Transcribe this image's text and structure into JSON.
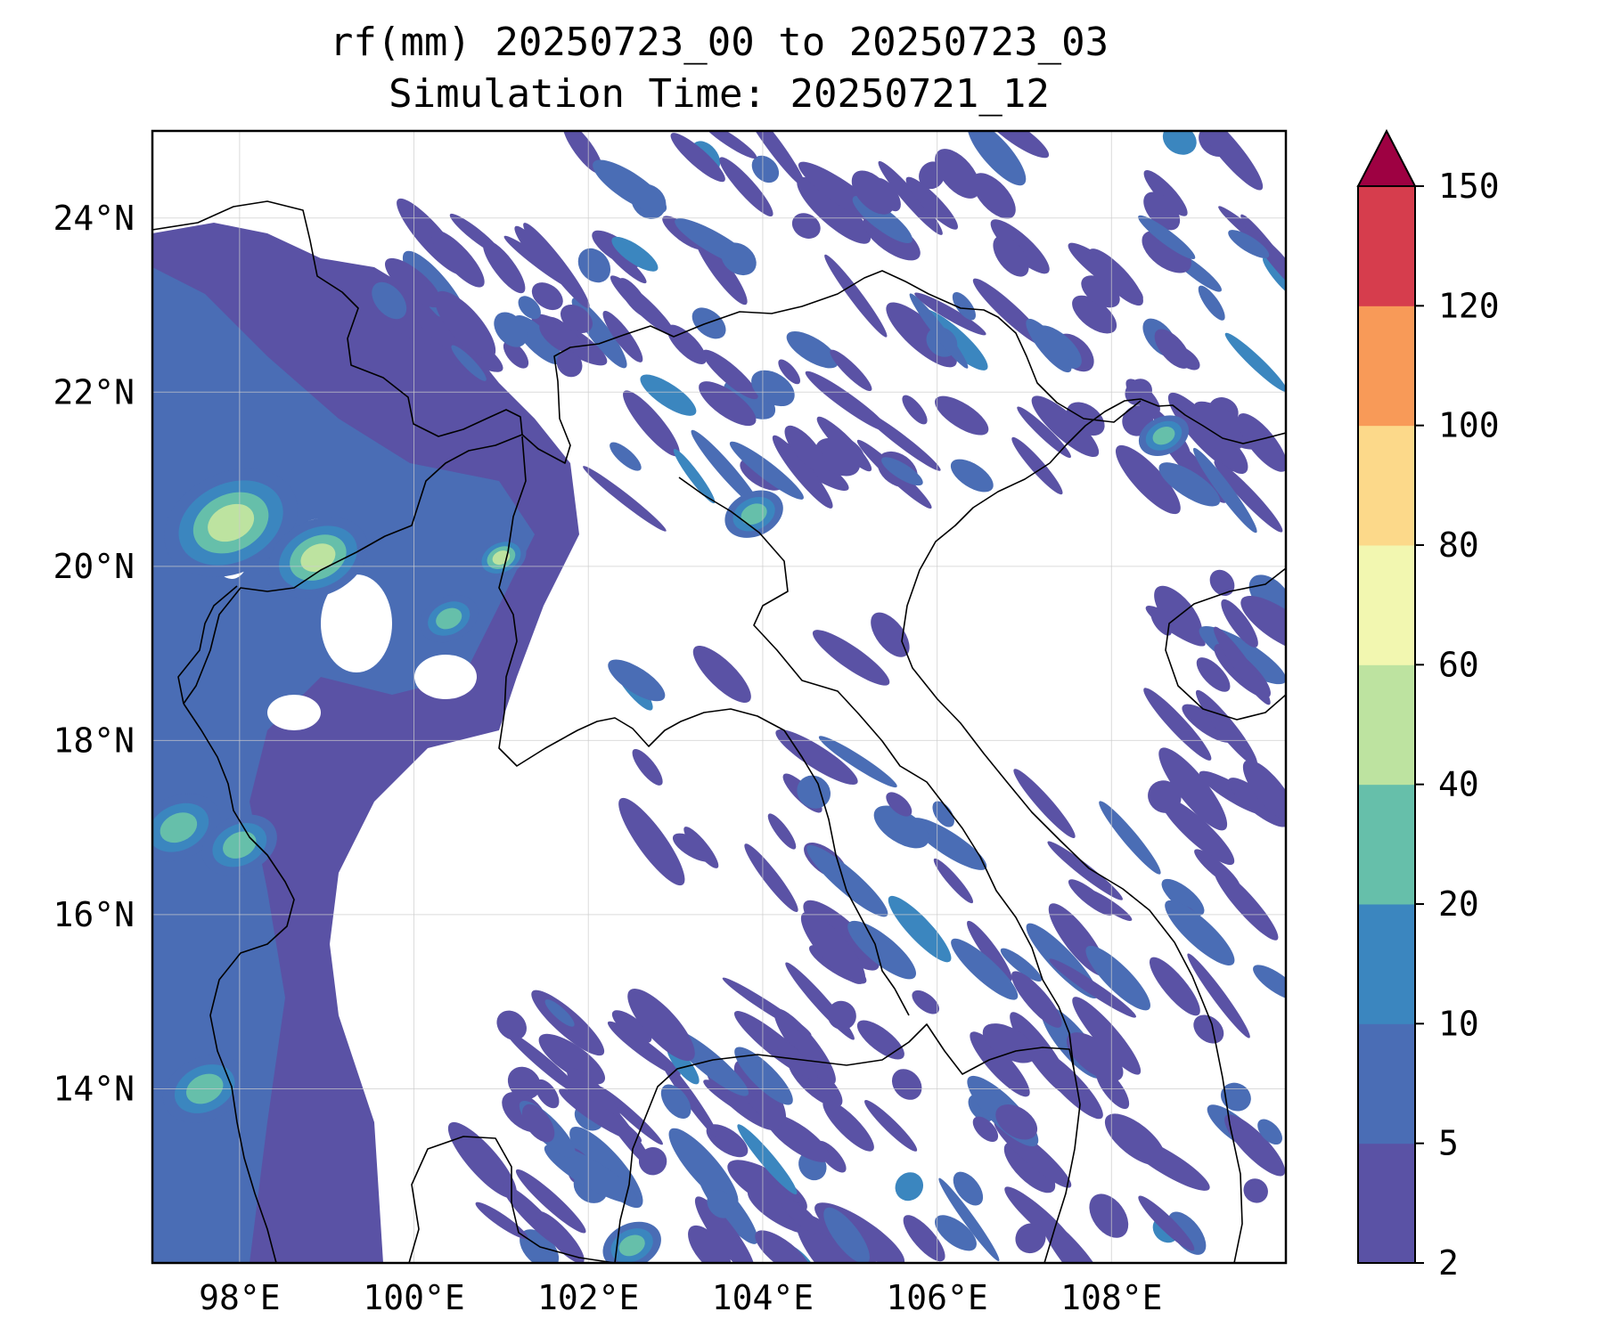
{
  "title": {
    "line1": "rf(mm) 20250723_00 to 20250723_03",
    "line2": "Simulation Time: 20250721_12"
  },
  "map": {
    "lon_range": [
      97,
      110
    ],
    "lat_range": [
      12,
      25
    ],
    "lon_ticks": [
      {
        "value": 98,
        "label": "98°E"
      },
      {
        "value": 100,
        "label": "100°E"
      },
      {
        "value": 102,
        "label": "102°E"
      },
      {
        "value": 104,
        "label": "104°E"
      },
      {
        "value": 106,
        "label": "106°E"
      },
      {
        "value": 108,
        "label": "108°E"
      }
    ],
    "lat_ticks": [
      {
        "value": 14,
        "label": "14°N"
      },
      {
        "value": 16,
        "label": "16°N"
      },
      {
        "value": 18,
        "label": "18°N"
      },
      {
        "value": 20,
        "label": "20°N"
      },
      {
        "value": 22,
        "label": "22°N"
      },
      {
        "value": 24,
        "label": "24°N"
      }
    ],
    "grid": true
  },
  "colorbar": {
    "levels": [
      2,
      5,
      10,
      20,
      40,
      60,
      80,
      100,
      120,
      150
    ],
    "level_labels": [
      "2",
      "5",
      "10",
      "20",
      "40",
      "60",
      "80",
      "100",
      "120",
      "150"
    ],
    "colors": [
      "#5a52a5",
      "#4a6db5",
      "#3b86bf",
      "#66bfaa",
      "#bde3a0",
      "#f2f7b0",
      "#fcd98a",
      "#f89a58",
      "#d63d4d"
    ],
    "extend_color": "#9e0142",
    "extend": "max"
  },
  "chart_data": {
    "type": "heatmap",
    "variable": "rf(mm)",
    "title": "rf(mm) 20250723_00 to 20250723_03",
    "subtitle": "Simulation Time: 20250721_12",
    "x_range": [
      97,
      110
    ],
    "y_range": [
      12,
      25
    ],
    "bins": [
      2,
      5,
      10,
      20,
      40,
      60,
      80,
      100,
      120,
      150
    ],
    "rain_blobs": [
      {
        "lon": 98.0,
        "lat": 20.8,
        "r": 0.35,
        "level": 5
      },
      {
        "lon": 97.9,
        "lat": 20.5,
        "r": 0.8,
        "level": 4
      },
      {
        "lon": 98.9,
        "lat": 20.0,
        "r": 0.3,
        "level": 6
      },
      {
        "lon": 98.9,
        "lat": 20.1,
        "r": 0.6,
        "level": 4
      },
      {
        "lon": 101.0,
        "lat": 20.1,
        "r": 0.3,
        "level": 4
      },
      {
        "lon": 100.4,
        "lat": 19.4,
        "r": 0.35,
        "level": 3
      },
      {
        "lon": 97.3,
        "lat": 17.0,
        "r": 0.5,
        "level": 3
      },
      {
        "lon": 98.0,
        "lat": 16.8,
        "r": 0.45,
        "level": 3
      },
      {
        "lon": 97.6,
        "lat": 14.0,
        "r": 0.5,
        "level": 3
      },
      {
        "lon": 102.5,
        "lat": 12.2,
        "r": 0.35,
        "level": 3
      },
      {
        "lon": 103.9,
        "lat": 20.6,
        "r": 0.35,
        "level": 3
      },
      {
        "lon": 108.6,
        "lat": 21.5,
        "r": 0.3,
        "level": 3
      }
    ]
  }
}
